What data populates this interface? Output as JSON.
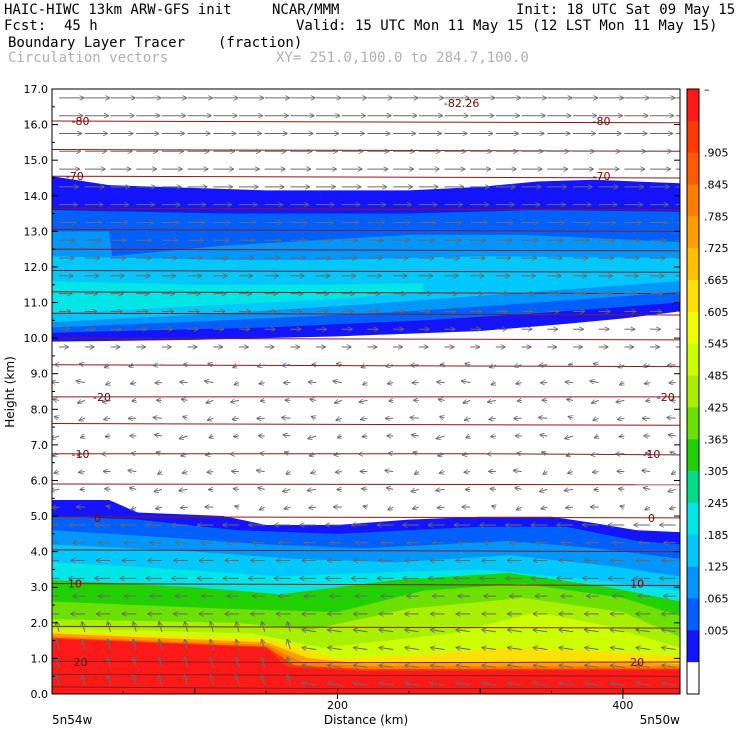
{
  "header": {
    "model": "HAIC-HIWC 13km ARW-GFS init",
    "org": "NCAR/MMM",
    "init": "Init: 18 UTC Sat 09 May 15",
    "fcst_label": "Fcst:",
    "fcst_value": "45 h",
    "valid": "Valid: 15 UTC Mon 11 May 15 (12 LST Mon 11 May 15)",
    "field_name": "Boundary Layer Tracer",
    "field_units": "(fraction)",
    "vector_label": "Circulation vectors",
    "xy_label": "XY= 251.0,100.0 to 284.7,100.0"
  },
  "chart_data": {
    "type": "heatmap",
    "xlabel": "Distance (km)",
    "ylabel": "Height (km)",
    "xlim": [
      0,
      440
    ],
    "ylim": [
      0,
      17
    ],
    "x_ticks": [
      "200",
      "400"
    ],
    "x_tick_values": [
      200,
      400
    ],
    "x_end_labels": [
      "5n54w",
      "5n50w"
    ],
    "y_ticks": [
      "0.0",
      "1.0",
      "2.0",
      "3.0",
      "4.0",
      "5.0",
      "6.0",
      "7.0",
      "8.0",
      "9.0",
      "10.0",
      "11.0",
      "12.0",
      "13.0",
      "14.0",
      "15.0",
      "16.0",
      "17.0"
    ],
    "colorbar": {
      "labels": [
        "–",
        ".905",
        ".845",
        ".785",
        ".725",
        ".665",
        ".605",
        ".545",
        ".485",
        ".425",
        ".365",
        ".305",
        ".245",
        ".185",
        ".125",
        ".065",
        ".005"
      ],
      "colors": [
        "#ff1a1a",
        "#ff3a00",
        "#ff5a00",
        "#ff7e00",
        "#ffa000",
        "#ffc000",
        "#ffe000",
        "#f0ff00",
        "#ccff00",
        "#a8f000",
        "#6ce000",
        "#22d000",
        "#00dc8c",
        "#00e6e6",
        "#00c8ff",
        "#0096ff",
        "#0060ff",
        "#1414ff",
        "#ffffff"
      ]
    },
    "contour_labels": [
      {
        "text": "-80",
        "x": 20,
        "y": 16.1
      },
      {
        "text": "-80",
        "x": 385,
        "y": 16.1
      },
      {
        "text": "-82.26",
        "x": 287,
        "y": 16.6
      },
      {
        "text": "-70",
        "x": 16,
        "y": 14.55
      },
      {
        "text": "-70",
        "x": 385,
        "y": 14.55
      },
      {
        "text": "-20",
        "x": 35,
        "y": 8.35
      },
      {
        "text": "-20",
        "x": 430,
        "y": 8.35
      },
      {
        "text": "-10",
        "x": 20,
        "y": 6.75
      },
      {
        "text": "-10",
        "x": 420,
        "y": 6.75
      },
      {
        "text": "0",
        "x": 32,
        "y": 4.95
      },
      {
        "text": "0",
        "x": 420,
        "y": 4.95
      },
      {
        "text": "10",
        "x": 16,
        "y": 3.1
      },
      {
        "text": "10",
        "x": 410,
        "y": 3.1
      },
      {
        "text": "20",
        "x": 20,
        "y": 0.9
      },
      {
        "text": "20",
        "x": 410,
        "y": 0.9
      }
    ]
  }
}
